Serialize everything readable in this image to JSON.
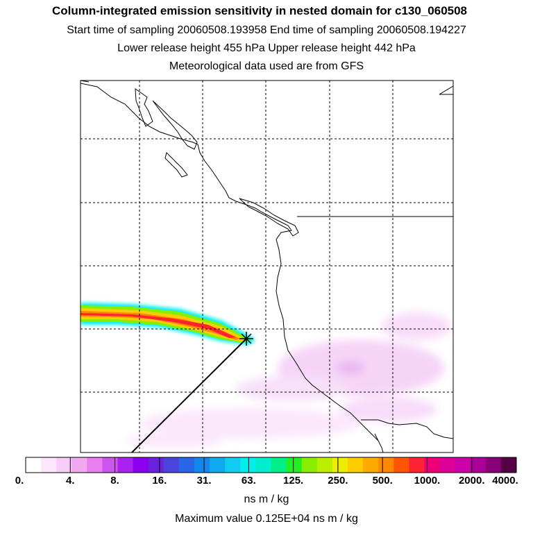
{
  "header": {
    "title": "Column-integrated emission sensitivity in nested domain for c130_060508",
    "line1": "Start time of sampling 20060508.193958     End time of sampling 20060508.194227",
    "line2": "Lower release height  455 hPa        Upper release height  442 hPa",
    "line3": "Meteorological data used are from GFS"
  },
  "colorbar": {
    "ticks": [
      "0.",
      "4.",
      "8.",
      "16.",
      "31.",
      "63.",
      "125.",
      "250.",
      "500.",
      "1000.",
      "2000.",
      "4000."
    ],
    "units": "ns m / kg",
    "colors": [
      "#ffffff",
      "#fce6fc",
      "#f8ccf8",
      "#f0a8f0",
      "#e87ef0",
      "#cc55ee",
      "#aa22ee",
      "#8800ee",
      "#6a22dd",
      "#4a44dd",
      "#2a66e8",
      "#1188ee",
      "#10aaf0",
      "#10ccf0",
      "#00eeee",
      "#00eecc",
      "#00ee88",
      "#22ee22",
      "#88ee00",
      "#bbee00",
      "#eeee00",
      "#ffcc00",
      "#ffaa00",
      "#ff8800",
      "#ff5500",
      "#ff2233",
      "#ee0077",
      "#dd0099",
      "#cc00aa",
      "#aa0099",
      "#880077",
      "#550044"
    ]
  },
  "max_value": "Maximum value  0.125E+04 ns m / kg",
  "map": {
    "release_marker": "release-point",
    "colors": {
      "frame": "#000000",
      "grid": "#000000",
      "coast": "#000000"
    }
  }
}
